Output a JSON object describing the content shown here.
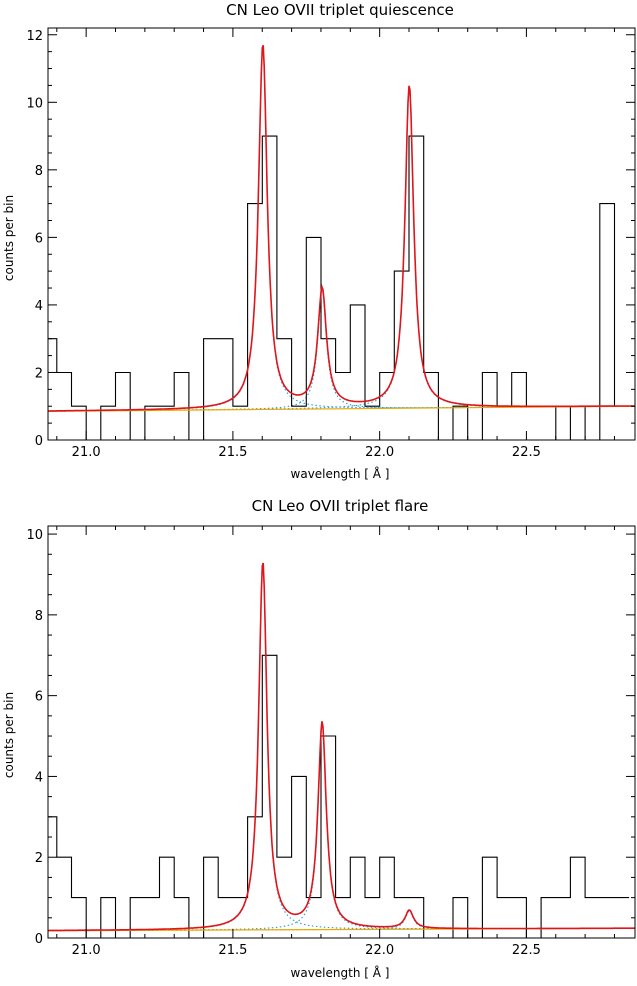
{
  "chart_data": [
    {
      "type": "line",
      "title": "CN Leo OVII triplet quiescence",
      "xlabel": "wavelength [ Å ]",
      "ylabel": "counts per bin",
      "xlim": [
        20.87,
        22.87
      ],
      "ylim": [
        0,
        12.2
      ],
      "xticks": [
        21.0,
        21.5,
        22.0,
        22.5
      ],
      "yticks": [
        0,
        2,
        4,
        6,
        8,
        10,
        12
      ],
      "colors": {
        "data": "#000000",
        "model": "#e0151b",
        "components": "#2a9fd6",
        "continuum": "#f0a800"
      },
      "histogram": {
        "edges": [
          20.85,
          20.9,
          20.95,
          21.0,
          21.05,
          21.1,
          21.15,
          21.2,
          21.25,
          21.3,
          21.35,
          21.4,
          21.45,
          21.5,
          21.55,
          21.6,
          21.65,
          21.7,
          21.75,
          21.8,
          21.85,
          21.9,
          21.95,
          22.0,
          22.05,
          22.1,
          22.15,
          22.2,
          22.25,
          22.3,
          22.35,
          22.4,
          22.45,
          22.5,
          22.55,
          22.6,
          22.65,
          22.7,
          22.75,
          22.8,
          22.85
        ],
        "counts": [
          3,
          2,
          1,
          0,
          1,
          2,
          0,
          1,
          1,
          2,
          0,
          3,
          3,
          1,
          7,
          9,
          3,
          1,
          6,
          3,
          2,
          4,
          1,
          2,
          5,
          9,
          2,
          0,
          1,
          0,
          2,
          1,
          2,
          1,
          1,
          0,
          1,
          0,
          7,
          1
        ]
      },
      "model": {
        "continuum": [
          [
            20.87,
            0.85
          ],
          [
            22.87,
            1.0
          ]
        ],
        "lines": [
          {
            "center": 21.602,
            "amplitude": 10.8,
            "width": 0.018
          },
          {
            "center": 21.804,
            "amplitude": 3.5,
            "width": 0.018
          },
          {
            "center": 22.101,
            "amplitude": 9.55,
            "width": 0.018
          }
        ]
      }
    },
    {
      "type": "line",
      "title": "CN Leo OVII triplet flare",
      "xlabel": "wavelength [ Å ]",
      "ylabel": "counts per bin",
      "xlim": [
        20.87,
        22.87
      ],
      "ylim": [
        0,
        10.2
      ],
      "xticks": [
        21.0,
        21.5,
        22.0,
        22.5
      ],
      "yticks": [
        0,
        2,
        4,
        6,
        8,
        10
      ],
      "colors": {
        "data": "#000000",
        "model": "#e0151b",
        "components": "#2a9fd6",
        "continuum": "#f0a800"
      },
      "histogram": {
        "edges": [
          20.85,
          20.9,
          20.95,
          21.0,
          21.05,
          21.1,
          21.15,
          21.2,
          21.25,
          21.3,
          21.35,
          21.4,
          21.45,
          21.5,
          21.55,
          21.6,
          21.65,
          21.7,
          21.75,
          21.8,
          21.85,
          21.9,
          21.95,
          22.0,
          22.05,
          22.1,
          22.15,
          22.2,
          22.25,
          22.3,
          22.35,
          22.4,
          22.45,
          22.5,
          22.55,
          22.6,
          22.65,
          22.7,
          22.75,
          22.8,
          22.85
        ],
        "counts": [
          3,
          2,
          1,
          0,
          1,
          0,
          1,
          1,
          2,
          1,
          0,
          2,
          1,
          1,
          3,
          7,
          2,
          4,
          1,
          5,
          1,
          2,
          1,
          2,
          1,
          1,
          0,
          0,
          1,
          0,
          2,
          1,
          1,
          0,
          1,
          1,
          2,
          1,
          1,
          1
        ]
      },
      "model": {
        "continuum": [
          [
            20.87,
            0.18
          ],
          [
            22.87,
            0.24
          ]
        ],
        "lines": [
          {
            "center": 21.602,
            "amplitude": 9.1,
            "width": 0.017
          },
          {
            "center": 21.804,
            "amplitude": 5.1,
            "width": 0.017
          },
          {
            "center": 22.101,
            "amplitude": 0.45,
            "width": 0.017
          }
        ]
      }
    }
  ]
}
